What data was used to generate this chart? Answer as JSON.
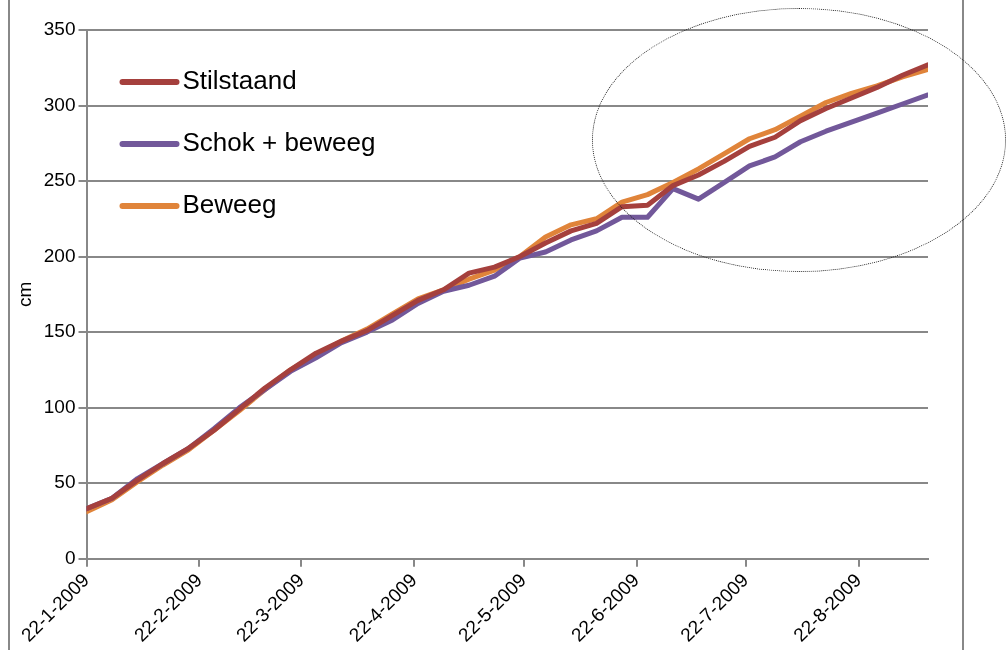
{
  "chart_data": {
    "type": "line",
    "ylabel": "cm",
    "x": [
      "2009-01-22",
      "2009-01-29",
      "2009-02-05",
      "2009-02-12",
      "2009-02-19",
      "2009-02-26",
      "2009-03-05",
      "2009-03-12",
      "2009-03-19",
      "2009-03-26",
      "2009-04-02",
      "2009-04-09",
      "2009-04-16",
      "2009-04-23",
      "2009-04-30",
      "2009-05-07",
      "2009-05-14",
      "2009-05-21",
      "2009-05-28",
      "2009-06-04",
      "2009-06-11",
      "2009-06-18",
      "2009-06-25",
      "2009-07-02",
      "2009-07-09",
      "2009-07-16",
      "2009-07-23",
      "2009-07-30",
      "2009-08-06",
      "2009-08-13",
      "2009-08-20",
      "2009-08-27",
      "2009-09-03",
      "2009-09-10"
    ],
    "series": [
      {
        "name": "Stilstaand",
        "color": "#a5403d",
        "values": [
          33,
          40,
          52,
          63,
          73,
          85,
          99,
          113,
          125,
          136,
          144,
          151,
          161,
          171,
          178,
          189,
          193,
          200,
          209,
          217,
          222,
          233,
          234,
          247,
          254,
          263,
          273,
          279,
          290,
          298,
          305,
          312,
          320,
          327
        ]
      },
      {
        "name": "Schok + beweeg",
        "color": "#72589a",
        "values": [
          33,
          40,
          53,
          63,
          73,
          86,
          100,
          112,
          124,
          133,
          143,
          150,
          158,
          169,
          177,
          181,
          187,
          199,
          203,
          211,
          217,
          226,
          226,
          245,
          238,
          249,
          260,
          266,
          276,
          283,
          289,
          295,
          301,
          307
        ]
      },
      {
        "name": "Beweeg",
        "color": "#e0843a",
        "values": [
          31,
          39,
          51,
          62,
          72,
          85,
          98,
          112,
          125,
          135,
          144,
          152,
          162,
          172,
          178,
          185,
          191,
          200,
          213,
          221,
          225,
          236,
          241,
          249,
          258,
          268,
          278,
          284,
          293,
          302,
          308,
          313,
          319,
          324
        ]
      }
    ],
    "xlim": [
      "2009-01-22",
      "2009-09-10"
    ],
    "xticks": [
      {
        "value": "2009-01-22",
        "label": "22-1-2009"
      },
      {
        "value": "2009-02-22",
        "label": "22-2-2009"
      },
      {
        "value": "2009-03-22",
        "label": "22-3-2009"
      },
      {
        "value": "2009-04-22",
        "label": "22-4-2009"
      },
      {
        "value": "2009-05-22",
        "label": "22-5-2009"
      },
      {
        "value": "2009-06-22",
        "label": "22-6-2009"
      },
      {
        "value": "2009-07-22",
        "label": "22-7-2009"
      },
      {
        "value": "2009-08-22",
        "label": "22-8-2009"
      }
    ],
    "ylim": [
      0,
      350
    ],
    "yticks": [
      0,
      50,
      100,
      150,
      200,
      250,
      300,
      350
    ],
    "grid": "y",
    "legend": "top left",
    "marker": "none",
    "line_style": "solid"
  }
}
